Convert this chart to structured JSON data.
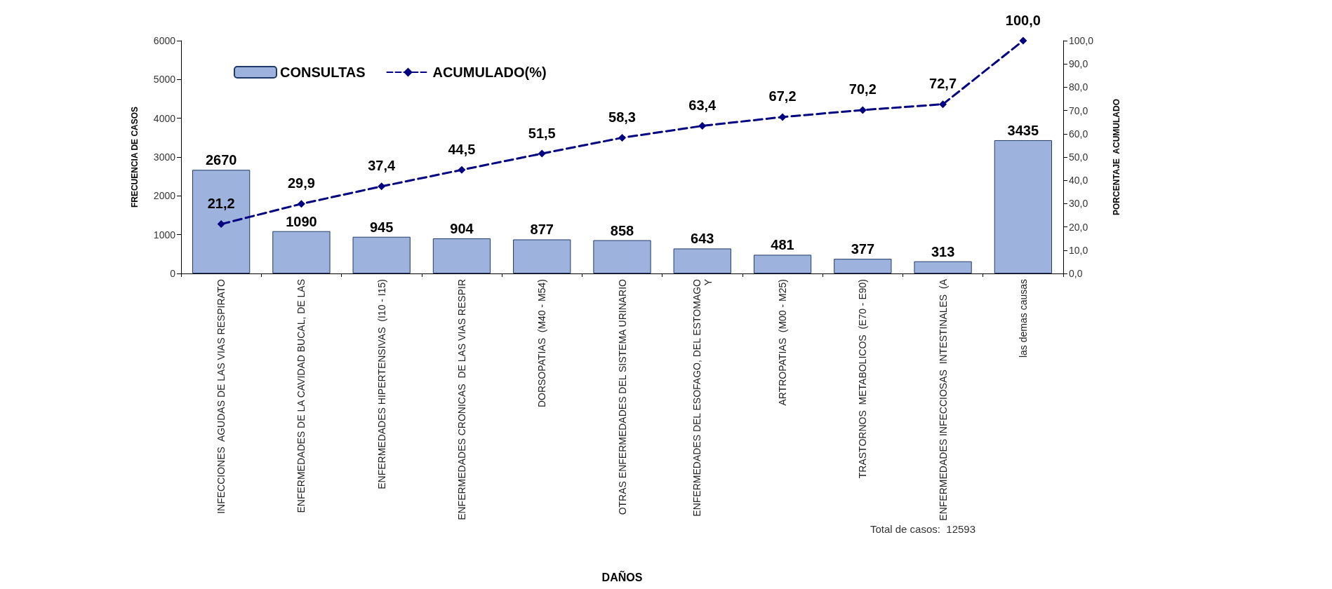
{
  "chart_data": {
    "type": "bar",
    "xlabel": "DAÑOS",
    "ylabel": "FRECUENCIA DE CASOS",
    "y2label": "PORCENTAJE  ACUMULADO",
    "categories": [
      "INFECCIONES  AGUDAS DE LAS VIAS RESPIRATO",
      "ENFERMEDADES DE LA CAVIDAD BUCAL, DE LAS",
      "ENFERMEDADES HIPERTENSIVAS  (I10 - I15)",
      "ENFERMEDADES CRONICAS  DE LAS VIAS RESPIR",
      "DORSOPATIAS  (M40 - M54)",
      "OTRAS ENFERMEDADES DEL SISTEMA URINARIO",
      "ENFERMEDADES DEL ESOFAGO, DEL ESTOMAGO\nY",
      "ARTROPATIAS  (M00 - M25)",
      "TRASTORNOS  METABOLICOS  (E70 - E90)",
      "ENFERMEDADES INFECCIOSAS  INTESTINALES  (A",
      "las demas causas"
    ],
    "series": [
      {
        "name": "CONSULTAS",
        "color": "#9db3dd",
        "values": [
          2670,
          1090,
          945,
          904,
          877,
          858,
          643,
          481,
          377,
          313,
          3435
        ]
      },
      {
        "name": "ACUMULADO(%)",
        "type": "line",
        "axis": "y2",
        "color": "#000080",
        "marker": "diamond",
        "line_style": "dashed",
        "values": [
          21.2,
          29.9,
          37.4,
          44.5,
          51.5,
          58.3,
          63.4,
          67.2,
          70.2,
          72.7,
          100.0
        ],
        "value_labels": [
          "21,2",
          "29,9",
          "37,4",
          "44,5",
          "51,5",
          "58,3",
          "63,4",
          "67,2",
          "70,2",
          "72,7",
          "100,0"
        ]
      }
    ],
    "data_labels": true,
    "ylim": [
      0,
      6000
    ],
    "yticks": [
      0,
      1000,
      2000,
      3000,
      4000,
      5000,
      6000
    ],
    "y2lim": [
      0,
      100
    ],
    "y2ticks": [
      {
        "value": 0,
        "label": "0,0"
      },
      {
        "value": 10,
        "label": "10,0"
      },
      {
        "value": 20,
        "label": "20,0"
      },
      {
        "value": 30,
        "label": "30,0"
      },
      {
        "value": 40,
        "label": "40,0"
      },
      {
        "value": 50,
        "label": "50,0"
      },
      {
        "value": 60,
        "label": "60,0"
      },
      {
        "value": 70,
        "label": "70,0"
      },
      {
        "value": 80,
        "label": "80,0"
      },
      {
        "value": 90,
        "label": "90,0"
      },
      {
        "value": 100,
        "label": "100,0"
      }
    ],
    "legend": "top left",
    "grid": false,
    "annotations": [
      "Total de casos:  12593"
    ]
  }
}
